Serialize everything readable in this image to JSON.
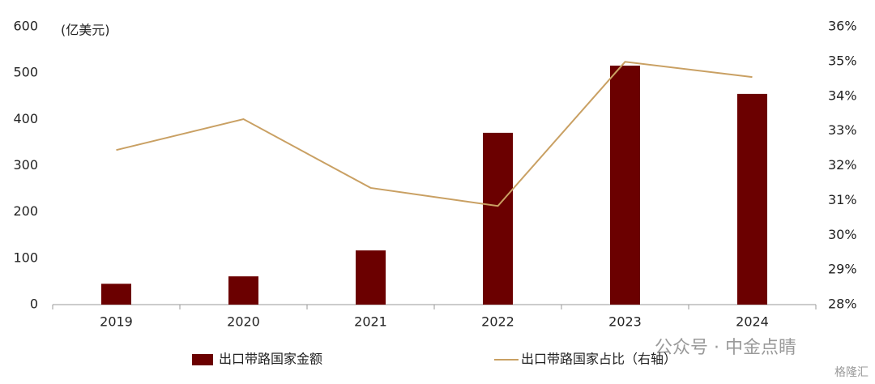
{
  "chart_data": {
    "type": "bar-line",
    "unit_label": "(亿美元)",
    "categories": [
      "2019",
      "2020",
      "2021",
      "2022",
      "2023",
      "2024"
    ],
    "series": [
      {
        "name": "出口带路国家金额",
        "type": "bar",
        "color": "#6b0000",
        "axis": "y",
        "values": [
          45,
          61,
          117,
          371,
          516,
          455
        ]
      },
      {
        "name": "出口带路国家占比（右轴）",
        "type": "line",
        "color": "#c9a063",
        "axis": "y2",
        "values": [
          32.45,
          33.34,
          31.36,
          30.84,
          34.99,
          34.55
        ]
      }
    ],
    "ylim": [
      0,
      600
    ],
    "yticks": [
      0,
      100,
      200,
      300,
      400,
      500,
      600
    ],
    "y2lim": [
      28,
      36
    ],
    "y2ticks": [
      {
        "value": 28,
        "label": "28%"
      },
      {
        "value": 29,
        "label": "29%"
      },
      {
        "value": 30,
        "label": "30%"
      },
      {
        "value": 31,
        "label": "31%"
      },
      {
        "value": 32,
        "label": "32%"
      },
      {
        "value": 33,
        "label": "33%"
      },
      {
        "value": 34,
        "label": "34%"
      },
      {
        "value": 35,
        "label": "35%"
      },
      {
        "value": 36,
        "label": "36%"
      }
    ],
    "grid": false,
    "legend": "bottom",
    "watermark": "公众号 · 中金点睛",
    "logo": "格隆汇"
  }
}
